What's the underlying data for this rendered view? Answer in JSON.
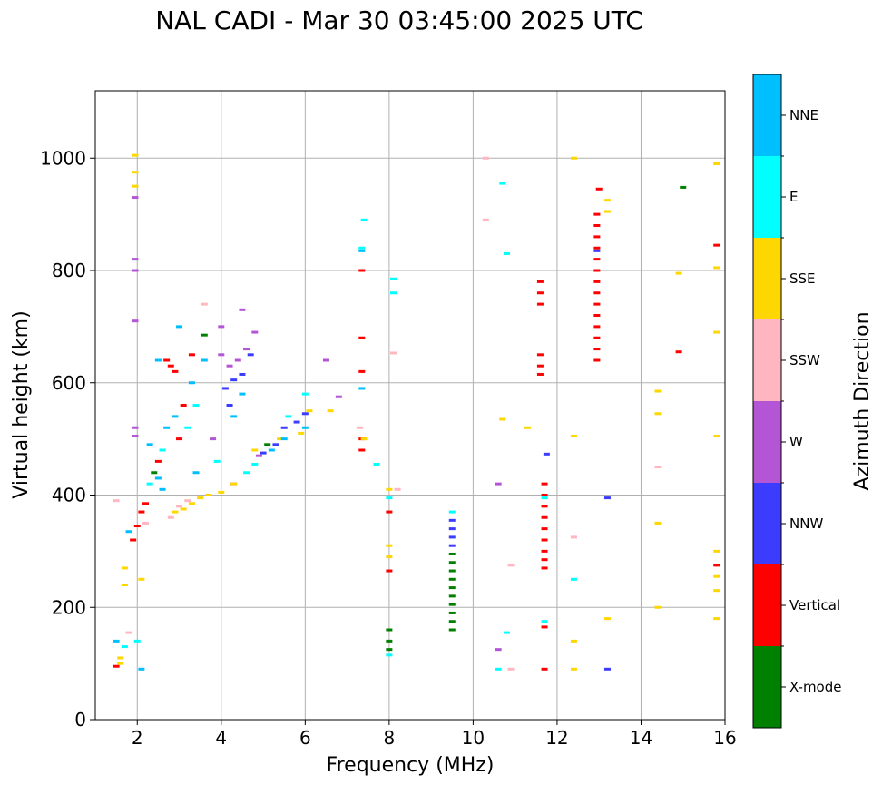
{
  "chart_data": {
    "type": "scatter",
    "title": "NAL CADI - Mar 30 03:45:00 2025 UTC",
    "xlabel": "Frequency (MHz)",
    "ylabel": "Virtual height (km)",
    "xlim": [
      1,
      16
    ],
    "ylim": [
      0,
      1120
    ],
    "xticks": [
      2,
      4,
      6,
      8,
      10,
      12,
      14,
      16
    ],
    "yticks": [
      0,
      200,
      400,
      600,
      800,
      1000
    ],
    "grid": true,
    "colorbar": {
      "label": "Azimuth Direction",
      "categories": [
        {
          "name": "X-mode",
          "color": "#008000"
        },
        {
          "name": "Vertical",
          "color": "#ff0000"
        },
        {
          "name": "NNW",
          "color": "#3c3cff"
        },
        {
          "name": "W",
          "color": "#b455d6"
        },
        {
          "name": "SSW",
          "color": "#ffb6c1"
        },
        {
          "name": "SSE",
          "color": "#ffd700"
        },
        {
          "name": "E",
          "color": "#00ffff"
        },
        {
          "name": "NNE",
          "color": "#00bfff"
        }
      ]
    },
    "series": [
      {
        "name": "X-mode",
        "points": [
          [
            9.5,
            160
          ],
          [
            9.5,
            175
          ],
          [
            9.5,
            190
          ],
          [
            9.5,
            205
          ],
          [
            9.5,
            220
          ],
          [
            9.5,
            235
          ],
          [
            9.5,
            250
          ],
          [
            9.5,
            265
          ],
          [
            9.5,
            280
          ],
          [
            9.5,
            295
          ],
          [
            8.0,
            125
          ],
          [
            8.0,
            140
          ],
          [
            8.0,
            160
          ],
          [
            3.6,
            685
          ],
          [
            15.0,
            948
          ],
          [
            5.1,
            490
          ],
          [
            2.4,
            440
          ]
        ]
      },
      {
        "name": "Vertical",
        "points": [
          [
            1.5,
            95
          ],
          [
            1.9,
            320
          ],
          [
            2.0,
            345
          ],
          [
            2.1,
            370
          ],
          [
            2.2,
            385
          ],
          [
            2.5,
            460
          ],
          [
            2.7,
            640
          ],
          [
            2.8,
            630
          ],
          [
            2.9,
            620
          ],
          [
            3.1,
            560
          ],
          [
            3.0,
            500
          ],
          [
            3.3,
            650
          ],
          [
            7.35,
            500
          ],
          [
            7.35,
            480
          ],
          [
            7.35,
            680
          ],
          [
            7.35,
            800
          ],
          [
            7.35,
            620
          ],
          [
            8.0,
            370
          ],
          [
            8.0,
            265
          ],
          [
            11.7,
            420
          ],
          [
            11.7,
            400
          ],
          [
            11.7,
            380
          ],
          [
            11.7,
            360
          ],
          [
            11.7,
            340
          ],
          [
            11.7,
            320
          ],
          [
            11.7,
            300
          ],
          [
            11.7,
            285
          ],
          [
            11.7,
            270
          ],
          [
            11.7,
            165
          ],
          [
            11.7,
            90
          ],
          [
            11.6,
            780
          ],
          [
            11.6,
            760
          ],
          [
            11.6,
            740
          ],
          [
            11.6,
            650
          ],
          [
            11.6,
            630
          ],
          [
            11.6,
            615
          ],
          [
            12.95,
            900
          ],
          [
            12.95,
            880
          ],
          [
            12.95,
            860
          ],
          [
            12.95,
            840
          ],
          [
            12.95,
            820
          ],
          [
            12.95,
            800
          ],
          [
            12.95,
            780
          ],
          [
            12.95,
            760
          ],
          [
            12.95,
            740
          ],
          [
            12.95,
            720
          ],
          [
            12.95,
            700
          ],
          [
            12.95,
            680
          ],
          [
            12.95,
            660
          ],
          [
            12.95,
            640
          ],
          [
            13.0,
            945
          ],
          [
            14.9,
            655
          ],
          [
            15.8,
            845
          ],
          [
            15.8,
            275
          ]
        ]
      },
      {
        "name": "NNW",
        "points": [
          [
            9.5,
            355
          ],
          [
            9.5,
            340
          ],
          [
            9.5,
            325
          ],
          [
            9.5,
            310
          ],
          [
            4.1,
            590
          ],
          [
            4.3,
            605
          ],
          [
            4.5,
            615
          ],
          [
            4.2,
            560
          ],
          [
            5.5,
            520
          ],
          [
            5.8,
            530
          ],
          [
            6.0,
            545
          ],
          [
            5.0,
            475
          ],
          [
            5.3,
            490
          ],
          [
            4.7,
            650
          ],
          [
            13.2,
            395
          ],
          [
            13.2,
            90
          ],
          [
            12.95,
            835
          ],
          [
            11.75,
            473
          ]
        ]
      },
      {
        "name": "W",
        "points": [
          [
            1.95,
            930
          ],
          [
            1.95,
            820
          ],
          [
            1.95,
            800
          ],
          [
            1.95,
            710
          ],
          [
            1.95,
            520
          ],
          [
            1.95,
            505
          ],
          [
            4.0,
            650
          ],
          [
            4.2,
            630
          ],
          [
            4.4,
            640
          ],
          [
            4.6,
            660
          ],
          [
            4.8,
            690
          ],
          [
            4.5,
            730
          ],
          [
            4.0,
            700
          ],
          [
            3.8,
            500
          ],
          [
            4.3,
            420
          ],
          [
            4.9,
            470
          ],
          [
            6.5,
            640
          ],
          [
            6.8,
            575
          ],
          [
            10.6,
            420
          ],
          [
            10.6,
            125
          ]
        ]
      },
      {
        "name": "SSW",
        "points": [
          [
            1.5,
            390
          ],
          [
            1.8,
            155
          ],
          [
            2.2,
            350
          ],
          [
            2.8,
            360
          ],
          [
            3.0,
            380
          ],
          [
            3.2,
            390
          ],
          [
            3.6,
            740
          ],
          [
            8.1,
            653
          ],
          [
            8.2,
            410
          ],
          [
            10.3,
            1000
          ],
          [
            10.3,
            890
          ],
          [
            10.9,
            275
          ],
          [
            10.9,
            90
          ],
          [
            12.4,
            325
          ],
          [
            14.4,
            450
          ],
          [
            7.3,
            520
          ]
        ]
      },
      {
        "name": "SSE",
        "points": [
          [
            1.95,
            1005
          ],
          [
            1.95,
            975
          ],
          [
            1.95,
            950
          ],
          [
            1.7,
            270
          ],
          [
            1.7,
            240
          ],
          [
            2.1,
            250
          ],
          [
            1.6,
            110
          ],
          [
            1.6,
            100
          ],
          [
            2.9,
            370
          ],
          [
            3.1,
            375
          ],
          [
            3.3,
            385
          ],
          [
            3.5,
            395
          ],
          [
            3.7,
            400
          ],
          [
            4.0,
            405
          ],
          [
            4.3,
            420
          ],
          [
            4.8,
            480
          ],
          [
            5.4,
            500
          ],
          [
            5.9,
            510
          ],
          [
            6.1,
            550
          ],
          [
            6.6,
            550
          ],
          [
            7.4,
            500
          ],
          [
            8.0,
            410
          ],
          [
            8.0,
            310
          ],
          [
            8.0,
            290
          ],
          [
            10.7,
            535
          ],
          [
            11.3,
            520
          ],
          [
            12.4,
            1000
          ],
          [
            12.4,
            505
          ],
          [
            12.4,
            140
          ],
          [
            12.4,
            90
          ],
          [
            13.2,
            925
          ],
          [
            13.2,
            905
          ],
          [
            13.2,
            180
          ],
          [
            14.4,
            585
          ],
          [
            14.4,
            545
          ],
          [
            14.4,
            350
          ],
          [
            14.4,
            200
          ],
          [
            14.9,
            795
          ],
          [
            15.8,
            990
          ],
          [
            15.8,
            805
          ],
          [
            15.8,
            690
          ],
          [
            15.8,
            505
          ],
          [
            15.8,
            300
          ],
          [
            15.8,
            255
          ],
          [
            15.8,
            230
          ],
          [
            15.8,
            180
          ]
        ]
      },
      {
        "name": "E",
        "points": [
          [
            1.7,
            130
          ],
          [
            2.0,
            140
          ],
          [
            2.3,
            420
          ],
          [
            2.6,
            480
          ],
          [
            3.2,
            520
          ],
          [
            3.4,
            560
          ],
          [
            3.9,
            460
          ],
          [
            4.6,
            440
          ],
          [
            4.8,
            455
          ],
          [
            5.6,
            540
          ],
          [
            6.0,
            580
          ],
          [
            7.4,
            890
          ],
          [
            7.35,
            840
          ],
          [
            7.7,
            455
          ],
          [
            8.1,
            760
          ],
          [
            8.0,
            395
          ],
          [
            8.0,
            115
          ],
          [
            8.1,
            785
          ],
          [
            10.7,
            955
          ],
          [
            10.8,
            830
          ],
          [
            10.8,
            155
          ],
          [
            10.6,
            90
          ],
          [
            12.4,
            250
          ],
          [
            11.7,
            175
          ],
          [
            9.5,
            370
          ],
          [
            11.7,
            395
          ]
        ]
      },
      {
        "name": "NNE",
        "points": [
          [
            1.5,
            140
          ],
          [
            1.8,
            335
          ],
          [
            2.5,
            430
          ],
          [
            2.7,
            520
          ],
          [
            2.9,
            540
          ],
          [
            3.3,
            600
          ],
          [
            3.6,
            640
          ],
          [
            3.0,
            700
          ],
          [
            2.5,
            640
          ],
          [
            2.3,
            490
          ],
          [
            2.6,
            410
          ],
          [
            4.3,
            540
          ],
          [
            4.5,
            580
          ],
          [
            5.2,
            480
          ],
          [
            5.5,
            500
          ],
          [
            6.0,
            520
          ],
          [
            7.35,
            590
          ],
          [
            7.35,
            835
          ],
          [
            2.1,
            90
          ],
          [
            3.4,
            440
          ]
        ]
      }
    ]
  }
}
